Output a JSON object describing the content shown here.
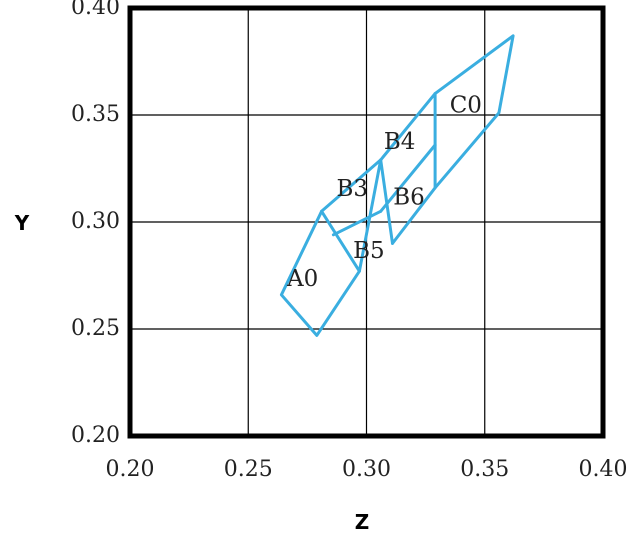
{
  "chart_data": {
    "type": "line",
    "title": "",
    "xlabel": "Z",
    "ylabel": "Y",
    "xlim": [
      0.2,
      0.4
    ],
    "ylim": [
      0.2,
      0.4
    ],
    "grid": true,
    "xticks": [
      "0.20",
      "0.25",
      "0.30",
      "0.35",
      "0.40"
    ],
    "yticks": [
      "0.20",
      "0.25",
      "0.30",
      "0.35",
      "0.40"
    ],
    "line_color": "#3aaee0",
    "series": [
      {
        "x": [
          0.281,
          0.264,
          0.279,
          0.297,
          0.281
        ],
        "y": [
          0.305,
          0.266,
          0.247,
          0.277,
          0.305
        ]
      },
      {
        "x": [
          0.281,
          0.306,
          0.311
        ],
        "y": [
          0.305,
          0.329,
          0.29
        ]
      },
      {
        "x": [
          0.297,
          0.306
        ],
        "y": [
          0.277,
          0.329
        ]
      },
      {
        "x": [
          0.286,
          0.306
        ],
        "y": [
          0.294,
          0.305
        ]
      },
      {
        "x": [
          0.306,
          0.329,
          0.329,
          0.311
        ],
        "y": [
          0.329,
          0.36,
          0.316,
          0.29
        ]
      },
      {
        "x": [
          0.306,
          0.329
        ],
        "y": [
          0.305,
          0.336
        ]
      },
      {
        "x": [
          0.329,
          0.362,
          0.356,
          0.329
        ],
        "y": [
          0.36,
          0.387,
          0.351,
          0.316
        ]
      }
    ],
    "annotations": [
      {
        "text": "A0",
        "x": 0.273,
        "y": 0.273
      },
      {
        "text": "B3",
        "x": 0.294,
        "y": 0.315
      },
      {
        "text": "B5",
        "x": 0.301,
        "y": 0.286
      },
      {
        "text": "B4",
        "x": 0.314,
        "y": 0.337
      },
      {
        "text": "B6",
        "x": 0.318,
        "y": 0.311
      },
      {
        "text": "C0",
        "x": 0.342,
        "y": 0.354
      }
    ]
  }
}
